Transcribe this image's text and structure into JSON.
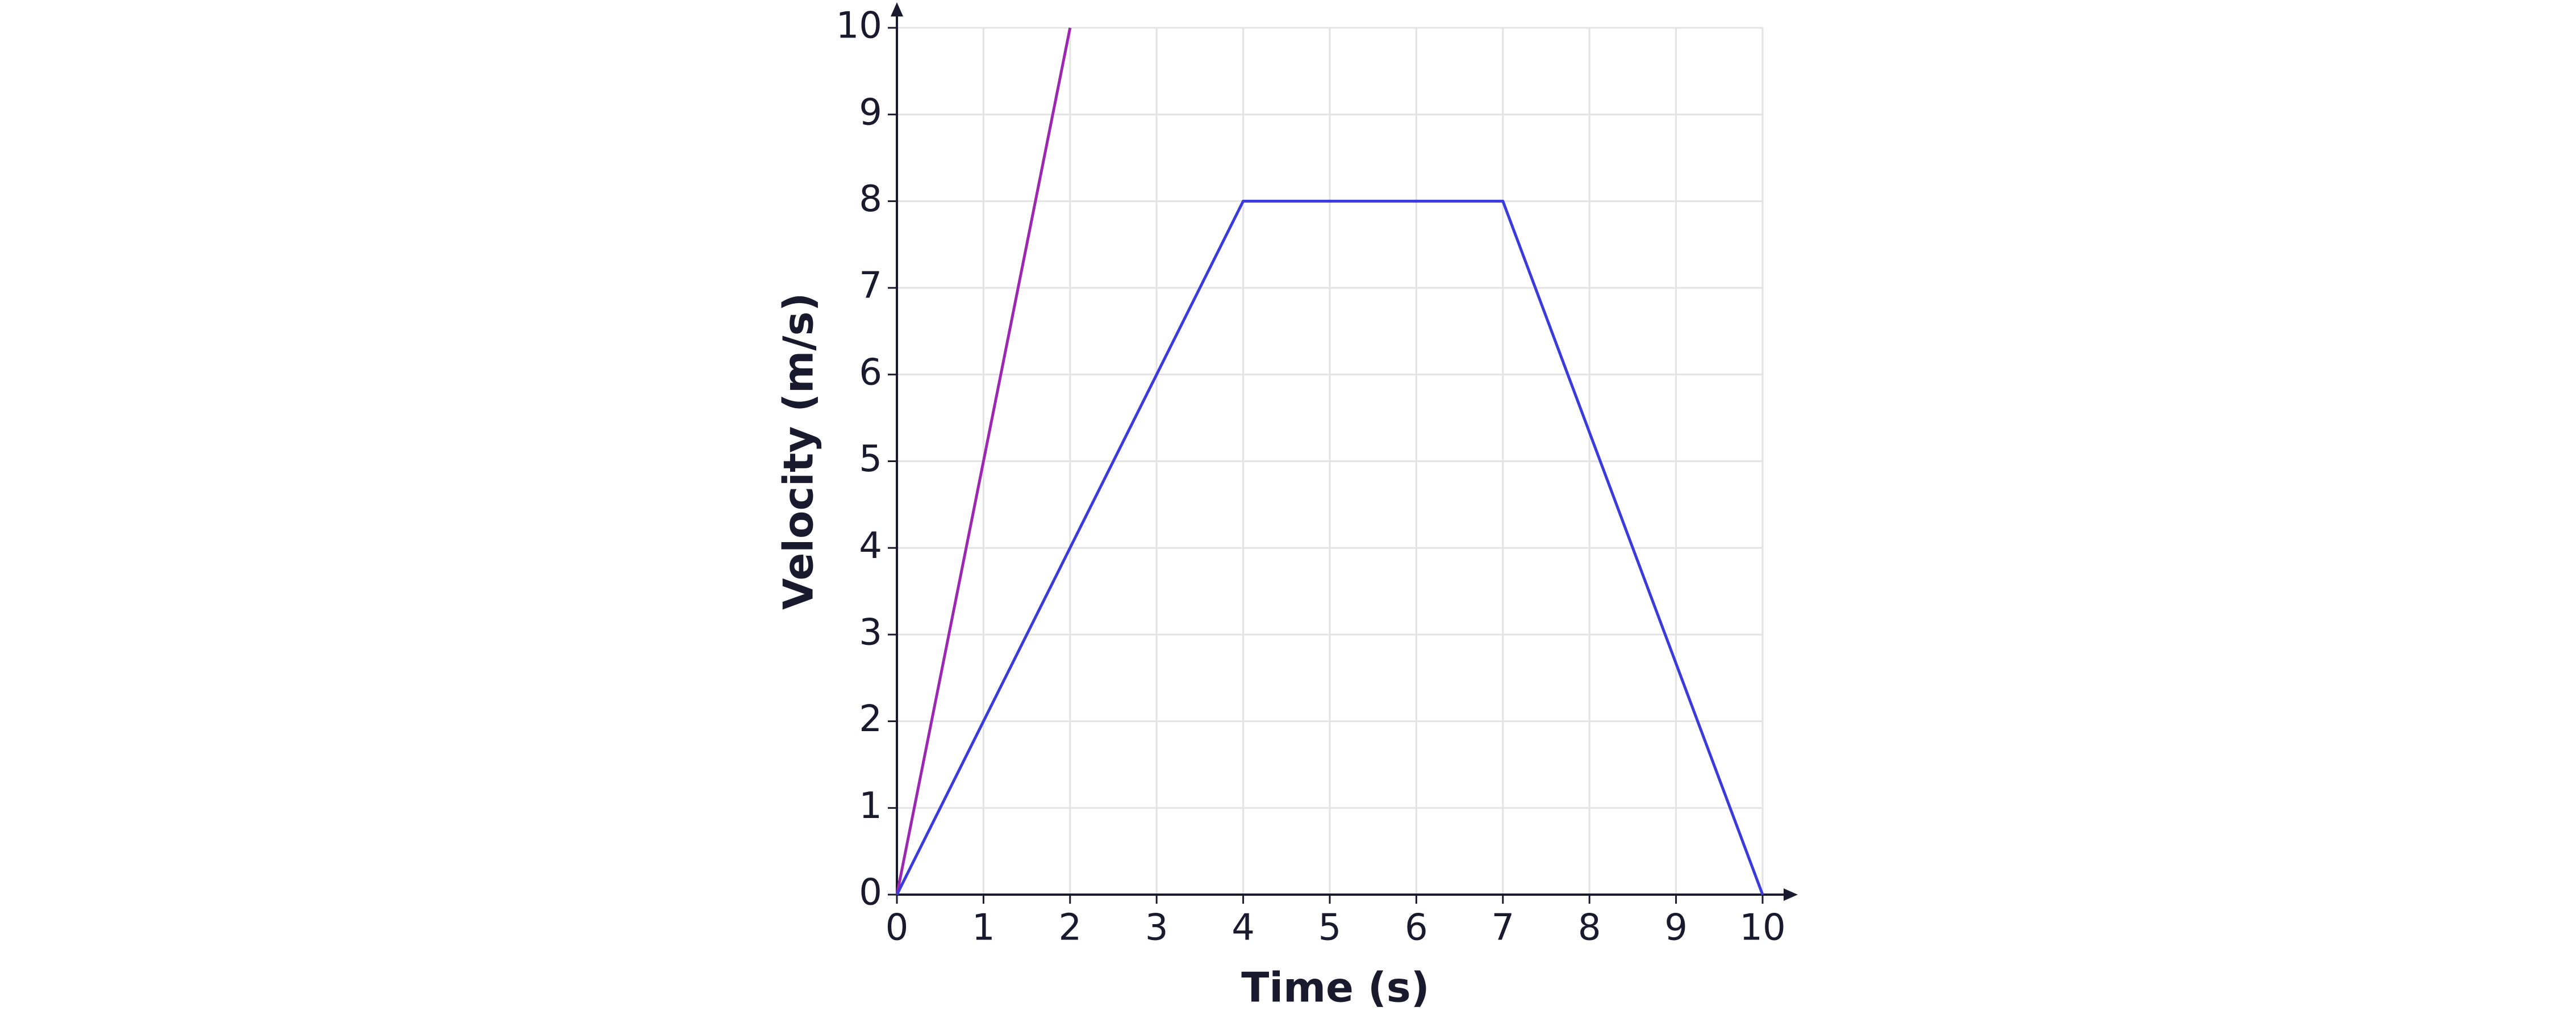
{
  "chart_data": {
    "type": "line",
    "x_label": "Time (s)",
    "y_label": "Velocity (m/s)",
    "xlim": [
      0,
      10
    ],
    "xticks": [
      0,
      1,
      2,
      3,
      4,
      5,
      6,
      7,
      8,
      9,
      10
    ],
    "ylim": [
      0,
      10
    ],
    "yticks": [
      0,
      1,
      2,
      3,
      4,
      5,
      6,
      7,
      8,
      9,
      10
    ],
    "grid": true,
    "series": [
      {
        "color": "#9c27b0",
        "x": [
          0,
          2
        ],
        "values": [
          0,
          10
        ]
      },
      {
        "color": "#3b3bdc",
        "x": [
          0,
          4,
          7,
          10
        ],
        "values": [
          0,
          8,
          8,
          0
        ]
      }
    ]
  }
}
